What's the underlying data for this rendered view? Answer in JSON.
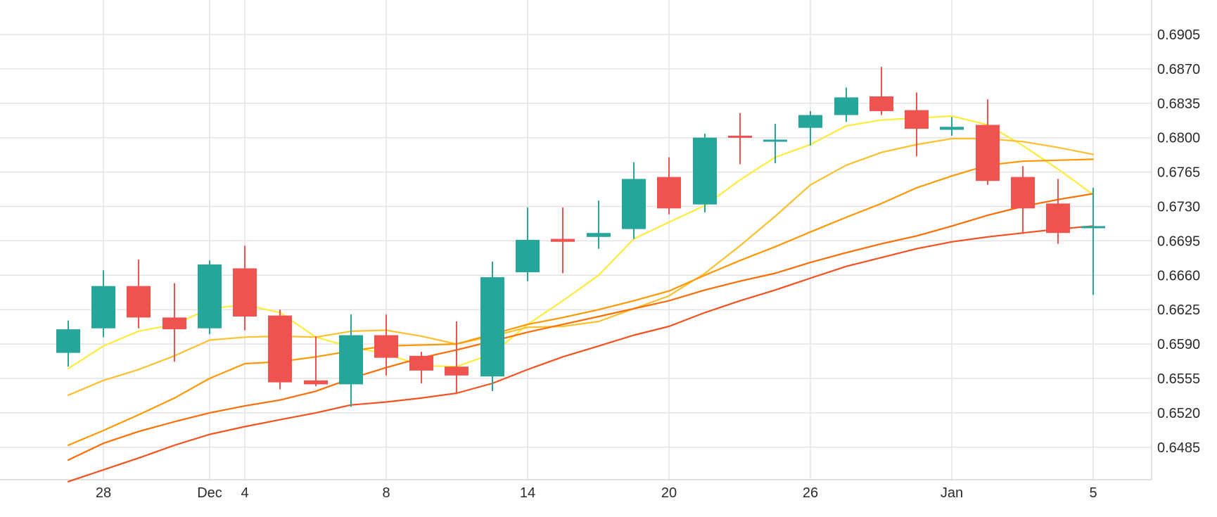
{
  "chart_data": {
    "type": "candlestick",
    "x_tick_labels": [
      "28",
      "Dec",
      "4",
      "8",
      "14",
      "20",
      "26",
      "Jan",
      "5"
    ],
    "y_tick_labels": [
      "0.6905",
      "0.6870",
      "0.6835",
      "0.6800",
      "0.6765",
      "0.6730",
      "0.6695",
      "0.6660",
      "0.6625",
      "0.6590",
      "0.6555",
      "0.6520",
      "0.6485"
    ],
    "ylim": [
      0.645,
      0.6935
    ],
    "y_axis_position": "right",
    "grid": true,
    "colors": {
      "up": "#26a69a",
      "down": "#ef5350",
      "grid": "#e3e3e3",
      "ma_lines": [
        "#ffeb3b",
        "#fbc02d",
        "#ff9800",
        "#ff6d00",
        "#f4511e"
      ]
    },
    "candles": [
      {
        "date": "Nov 26",
        "open": 0.6581,
        "high": 0.6614,
        "low": 0.6567,
        "close": 0.6605
      },
      {
        "date": "Nov 28",
        "open": 0.6606,
        "high": 0.6665,
        "low": 0.6597,
        "close": 0.6649
      },
      {
        "date": "Nov 29",
        "open": 0.6649,
        "high": 0.6676,
        "low": 0.6606,
        "close": 0.6617
      },
      {
        "date": "Nov 30",
        "open": 0.6617,
        "high": 0.6652,
        "low": 0.6572,
        "close": 0.6605
      },
      {
        "date": "Dec 1",
        "open": 0.6606,
        "high": 0.6675,
        "low": 0.66,
        "close": 0.6671
      },
      {
        "date": "Dec 4",
        "open": 0.6667,
        "high": 0.669,
        "low": 0.6604,
        "close": 0.6618
      },
      {
        "date": "Dec 5",
        "open": 0.6619,
        "high": 0.6625,
        "low": 0.6544,
        "close": 0.6551
      },
      {
        "date": "Dec 6",
        "open": 0.6553,
        "high": 0.6598,
        "low": 0.6547,
        "close": 0.6549
      },
      {
        "date": "Dec 7",
        "open": 0.6549,
        "high": 0.662,
        "low": 0.6526,
        "close": 0.6599
      },
      {
        "date": "Dec 8",
        "open": 0.6599,
        "high": 0.662,
        "low": 0.6558,
        "close": 0.6576
      },
      {
        "date": "Dec 11",
        "open": 0.6578,
        "high": 0.6582,
        "low": 0.655,
        "close": 0.6563
      },
      {
        "date": "Dec 12",
        "open": 0.6567,
        "high": 0.6613,
        "low": 0.6539,
        "close": 0.6558
      },
      {
        "date": "Dec 13",
        "open": 0.6557,
        "high": 0.6674,
        "low": 0.6542,
        "close": 0.6658
      },
      {
        "date": "Dec 14",
        "open": 0.6663,
        "high": 0.6729,
        "low": 0.6654,
        "close": 0.6696
      },
      {
        "date": "Dec 15",
        "open": 0.6697,
        "high": 0.6729,
        "low": 0.6662,
        "close": 0.6694
      },
      {
        "date": "Dec 18",
        "open": 0.6699,
        "high": 0.6736,
        "low": 0.6687,
        "close": 0.6703
      },
      {
        "date": "Dec 19",
        "open": 0.6707,
        "high": 0.6775,
        "low": 0.6697,
        "close": 0.6758
      },
      {
        "date": "Dec 20",
        "open": 0.676,
        "high": 0.678,
        "low": 0.6722,
        "close": 0.6728
      },
      {
        "date": "Dec 21",
        "open": 0.6732,
        "high": 0.6804,
        "low": 0.6724,
        "close": 0.68
      },
      {
        "date": "Dec 22",
        "open": 0.6802,
        "high": 0.6825,
        "low": 0.6773,
        "close": 0.68
      },
      {
        "date": "Dec 26",
        "open": 0.6798,
        "high": 0.6814,
        "low": 0.6774,
        "close": 0.6798
      },
      {
        "date": "Dec 27",
        "open": 0.681,
        "high": 0.6827,
        "low": 0.6792,
        "close": 0.6823
      },
      {
        "date": "Dec 28",
        "open": 0.6823,
        "high": 0.6851,
        "low": 0.6816,
        "close": 0.6841
      },
      {
        "date": "Dec 29",
        "open": 0.6842,
        "high": 0.6872,
        "low": 0.6823,
        "close": 0.6827
      },
      {
        "date": "Jan 2",
        "open": 0.6828,
        "high": 0.6846,
        "low": 0.6781,
        "close": 0.6809
      },
      {
        "date": "Jan 3",
        "open": 0.6808,
        "high": 0.6821,
        "low": 0.6802,
        "close": 0.6811
      },
      {
        "date": "Jan 4",
        "open": 0.6813,
        "high": 0.6839,
        "low": 0.6752,
        "close": 0.6756
      },
      {
        "date": "Jan 5",
        "open": 0.676,
        "high": 0.6771,
        "low": 0.6702,
        "close": 0.6728
      },
      {
        "date": "Jan 8",
        "open": 0.6733,
        "high": 0.6758,
        "low": 0.6692,
        "close": 0.6703
      },
      {
        "date": "Jan 9",
        "open": 0.671,
        "high": 0.6749,
        "low": 0.664,
        "close": 0.671
      }
    ],
    "moving_averages": [
      {
        "color": "#ffeb3b",
        "values": [
          0.6565,
          0.6588,
          0.6603,
          0.661,
          0.6626,
          0.663,
          0.6622,
          0.6597,
          0.6587,
          0.658,
          0.6568,
          0.6567,
          0.658,
          0.661,
          0.6634,
          0.666,
          0.6697,
          0.6714,
          0.6731,
          0.6757,
          0.678,
          0.6793,
          0.6812,
          0.6818,
          0.682,
          0.6822,
          0.6813,
          0.6792,
          0.6768,
          0.6742
        ]
      },
      {
        "color": "#fbc02d",
        "values": [
          0.6538,
          0.6553,
          0.6564,
          0.6578,
          0.6594,
          0.6597,
          0.6598,
          0.6597,
          0.6603,
          0.6604,
          0.6598,
          0.659,
          0.6598,
          0.6607,
          0.6608,
          0.6613,
          0.6626,
          0.6639,
          0.6662,
          0.669,
          0.672,
          0.6752,
          0.6772,
          0.6785,
          0.6793,
          0.6799,
          0.6799,
          0.6796,
          0.679,
          0.6783
        ]
      },
      {
        "color": "#ff9800",
        "values": [
          0.6487,
          0.6502,
          0.6518,
          0.6535,
          0.6555,
          0.657,
          0.6572,
          0.6577,
          0.6583,
          0.6588,
          0.6589,
          0.659,
          0.66,
          0.661,
          0.6617,
          0.6625,
          0.6634,
          0.6644,
          0.666,
          0.6675,
          0.6689,
          0.6704,
          0.6719,
          0.6733,
          0.6749,
          0.6761,
          0.6772,
          0.6776,
          0.6777,
          0.6778
        ]
      },
      {
        "color": "#ff6d00",
        "values": [
          0.6472,
          0.6489,
          0.6501,
          0.6511,
          0.652,
          0.6527,
          0.6533,
          0.6542,
          0.6555,
          0.6566,
          0.6576,
          0.6584,
          0.6593,
          0.6602,
          0.661,
          0.6618,
          0.6626,
          0.6634,
          0.6645,
          0.6654,
          0.6662,
          0.6673,
          0.6683,
          0.6692,
          0.67,
          0.671,
          0.6721,
          0.673,
          0.6737,
          0.6743
        ]
      },
      {
        "color": "#f4511e",
        "values": [
          0.645,
          0.6462,
          0.6474,
          0.6487,
          0.6498,
          0.6506,
          0.6513,
          0.652,
          0.6528,
          0.6531,
          0.6535,
          0.654,
          0.655,
          0.6564,
          0.6577,
          0.6588,
          0.6599,
          0.6608,
          0.6622,
          0.6634,
          0.6645,
          0.6657,
          0.6669,
          0.6678,
          0.6687,
          0.6694,
          0.6699,
          0.6703,
          0.6707,
          0.671
        ]
      }
    ]
  }
}
